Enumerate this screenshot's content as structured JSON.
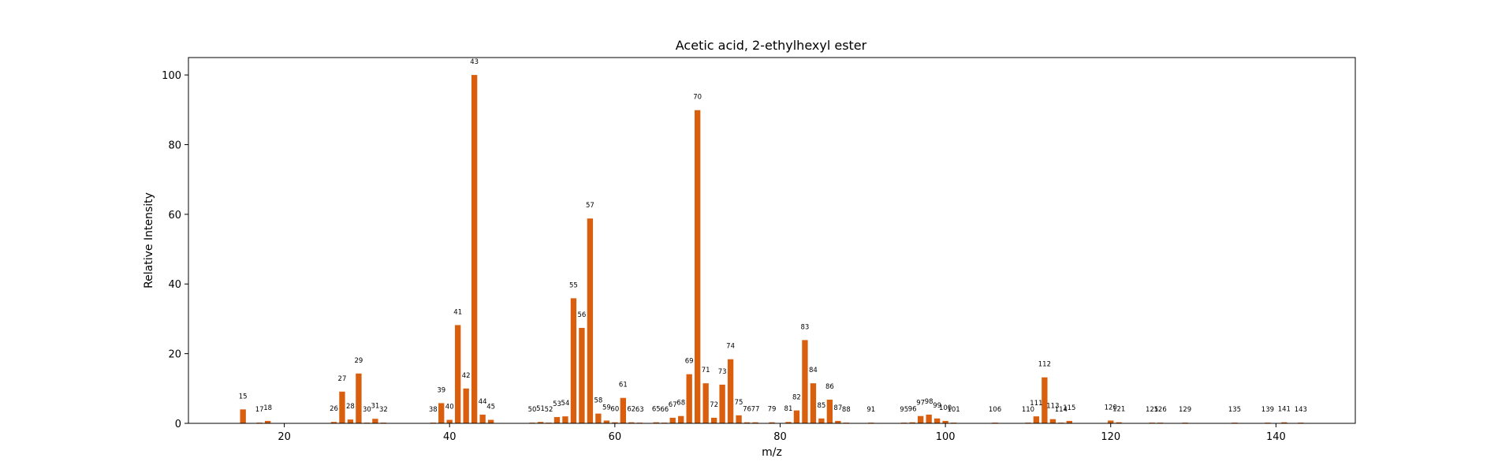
{
  "chart_data": {
    "type": "bar",
    "title": "Acetic acid, 2-ethylhexyl ester",
    "xlabel": "m/z",
    "ylabel": "Relative Intensity",
    "xlim": [
      8.4,
      149.6
    ],
    "ylim": [
      0,
      105
    ],
    "xticks": [
      20,
      40,
      60,
      80,
      100,
      120,
      140
    ],
    "yticks": [
      0,
      20,
      40,
      60,
      80,
      100
    ],
    "bar_color": "#d95f0e",
    "grid": false,
    "legend": "none",
    "points": [
      {
        "x": 15,
        "y": 4.0
      },
      {
        "x": 17,
        "y": 0.2
      },
      {
        "x": 18,
        "y": 0.7
      },
      {
        "x": 26,
        "y": 0.4
      },
      {
        "x": 27,
        "y": 9.1
      },
      {
        "x": 28,
        "y": 1.1
      },
      {
        "x": 29,
        "y": 14.3
      },
      {
        "x": 30,
        "y": 0.2
      },
      {
        "x": 31,
        "y": 1.3
      },
      {
        "x": 32,
        "y": 0.2
      },
      {
        "x": 38,
        "y": 0.2
      },
      {
        "x": 39,
        "y": 5.8
      },
      {
        "x": 40,
        "y": 1.0
      },
      {
        "x": 41,
        "y": 28.2
      },
      {
        "x": 42,
        "y": 10.0
      },
      {
        "x": 43,
        "y": 100
      },
      {
        "x": 44,
        "y": 2.5
      },
      {
        "x": 45,
        "y": 1.0
      },
      {
        "x": 50,
        "y": 0.2
      },
      {
        "x": 51,
        "y": 0.4
      },
      {
        "x": 52,
        "y": 0.2
      },
      {
        "x": 53,
        "y": 1.8
      },
      {
        "x": 54,
        "y": 2.0
      },
      {
        "x": 55,
        "y": 35.9
      },
      {
        "x": 56,
        "y": 27.4
      },
      {
        "x": 57,
        "y": 58.8
      },
      {
        "x": 58,
        "y": 2.8
      },
      {
        "x": 59,
        "y": 0.8
      },
      {
        "x": 60,
        "y": 0.3
      },
      {
        "x": 61,
        "y": 7.3
      },
      {
        "x": 62,
        "y": 0.3
      },
      {
        "x": 63,
        "y": 0.2
      },
      {
        "x": 65,
        "y": 0.3
      },
      {
        "x": 66,
        "y": 0.2
      },
      {
        "x": 67,
        "y": 1.6
      },
      {
        "x": 68,
        "y": 2.1
      },
      {
        "x": 69,
        "y": 14.1
      },
      {
        "x": 70,
        "y": 89.9
      },
      {
        "x": 71,
        "y": 11.5
      },
      {
        "x": 72,
        "y": 1.6
      },
      {
        "x": 73,
        "y": 11.1
      },
      {
        "x": 74,
        "y": 18.4
      },
      {
        "x": 75,
        "y": 2.3
      },
      {
        "x": 76,
        "y": 0.3
      },
      {
        "x": 77,
        "y": 0.3
      },
      {
        "x": 79,
        "y": 0.3
      },
      {
        "x": 81,
        "y": 0.4
      },
      {
        "x": 82,
        "y": 3.7
      },
      {
        "x": 83,
        "y": 23.9
      },
      {
        "x": 84,
        "y": 11.5
      },
      {
        "x": 85,
        "y": 1.4
      },
      {
        "x": 86,
        "y": 6.8
      },
      {
        "x": 87,
        "y": 0.7
      },
      {
        "x": 88,
        "y": 0.2
      },
      {
        "x": 91,
        "y": 0.2
      },
      {
        "x": 95,
        "y": 0.2
      },
      {
        "x": 96,
        "y": 0.3
      },
      {
        "x": 97,
        "y": 2.1
      },
      {
        "x": 98,
        "y": 2.5
      },
      {
        "x": 99,
        "y": 1.4
      },
      {
        "x": 100,
        "y": 0.7
      },
      {
        "x": 101,
        "y": 0.2
      },
      {
        "x": 106,
        "y": 0.2
      },
      {
        "x": 110,
        "y": 0.2
      },
      {
        "x": 111,
        "y": 2.0
      },
      {
        "x": 112,
        "y": 13.2
      },
      {
        "x": 113,
        "y": 1.2
      },
      {
        "x": 114,
        "y": 0.2
      },
      {
        "x": 115,
        "y": 0.7
      },
      {
        "x": 120,
        "y": 0.8
      },
      {
        "x": 121,
        "y": 0.3
      },
      {
        "x": 125,
        "y": 0.2
      },
      {
        "x": 126,
        "y": 0.2
      },
      {
        "x": 129,
        "y": 0.2
      },
      {
        "x": 135,
        "y": 0.2
      },
      {
        "x": 139,
        "y": 0.2
      },
      {
        "x": 141,
        "y": 0.3
      },
      {
        "x": 143,
        "y": 0.2
      }
    ]
  }
}
